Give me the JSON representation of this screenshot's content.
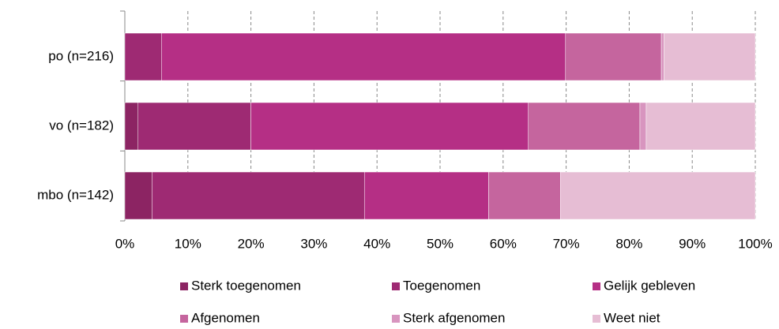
{
  "chart_data": {
    "type": "stacked-barh",
    "categories": [
      "po (n=216)",
      "vo (n=182)",
      "mbo (n=142)"
    ],
    "series": [
      {
        "name": "Sterk toegenomen",
        "color": "#8c2463",
        "values": [
          0,
          2.1,
          4.3
        ]
      },
      {
        "name": "Toegenomen",
        "color": "#9e2a73",
        "values": [
          5.8,
          17.9,
          33.7
        ]
      },
      {
        "name": "Gelijk gebleven",
        "color": "#b52f85",
        "values": [
          64.1,
          44.0,
          19.7
        ]
      },
      {
        "name": "Afgenomen",
        "color": "#c5659e",
        "values": [
          15.2,
          17.7,
          11.4
        ]
      },
      {
        "name": "Sterk afgenomen",
        "color": "#d895bf",
        "values": [
          0.4,
          1.0,
          0
        ]
      },
      {
        "name": "Weet niet",
        "color": "#e6bdd4",
        "values": [
          14.5,
          17.3,
          30.9
        ]
      }
    ],
    "xlim": [
      0,
      100
    ],
    "xticks": [
      {
        "value": 0,
        "label": "0%"
      },
      {
        "value": 10,
        "label": "10%"
      },
      {
        "value": 20,
        "label": "20%"
      },
      {
        "value": 30,
        "label": "30%"
      },
      {
        "value": 40,
        "label": "40%"
      },
      {
        "value": 50,
        "label": "50%"
      },
      {
        "value": 60,
        "label": "60%"
      },
      {
        "value": 70,
        "label": "70%"
      },
      {
        "value": 80,
        "label": "80%"
      },
      {
        "value": 90,
        "label": "90%"
      },
      {
        "value": 100,
        "label": "100%"
      }
    ],
    "grid": true
  }
}
